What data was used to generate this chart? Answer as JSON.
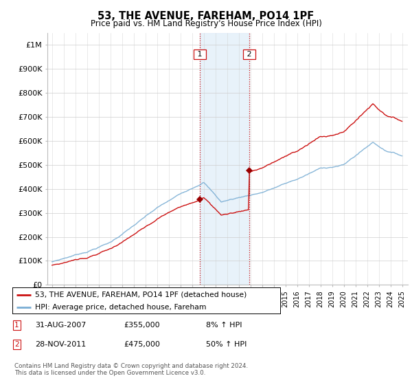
{
  "title": "53, THE AVENUE, FAREHAM, PO14 1PF",
  "subtitle": "Price paid vs. HM Land Registry's House Price Index (HPI)",
  "ylim": [
    0,
    1050000
  ],
  "yticks": [
    0,
    100000,
    200000,
    300000,
    400000,
    500000,
    600000,
    700000,
    800000,
    900000,
    1000000
  ],
  "ytick_labels": [
    "£0",
    "£100K",
    "£200K",
    "£300K",
    "£400K",
    "£500K",
    "£600K",
    "£700K",
    "£800K",
    "£900K",
    "£1M"
  ],
  "hpi_color": "#7aaed4",
  "price_color": "#cc1111",
  "marker_color": "#990000",
  "shade_color": "#daeaf7",
  "shade_alpha": 0.6,
  "purchase1_date": 2007.667,
  "purchase1_price": 355000,
  "purchase2_date": 2011.917,
  "purchase2_price": 475000,
  "vline_color": "#cc1111",
  "vline_style": ":",
  "legend_line1": "53, THE AVENUE, FAREHAM, PO14 1PF (detached house)",
  "legend_line2": "HPI: Average price, detached house, Fareham",
  "annot1_date": "31-AUG-2007",
  "annot1_price": "£355,000",
  "annot1_hpi": "8% ↑ HPI",
  "annot2_date": "28-NOV-2011",
  "annot2_price": "£475,000",
  "annot2_hpi": "50% ↑ HPI",
  "footer": "Contains HM Land Registry data © Crown copyright and database right 2024.\nThis data is licensed under the Open Government Licence v3.0.",
  "background_color": "#ffffff",
  "grid_color": "#cccccc"
}
